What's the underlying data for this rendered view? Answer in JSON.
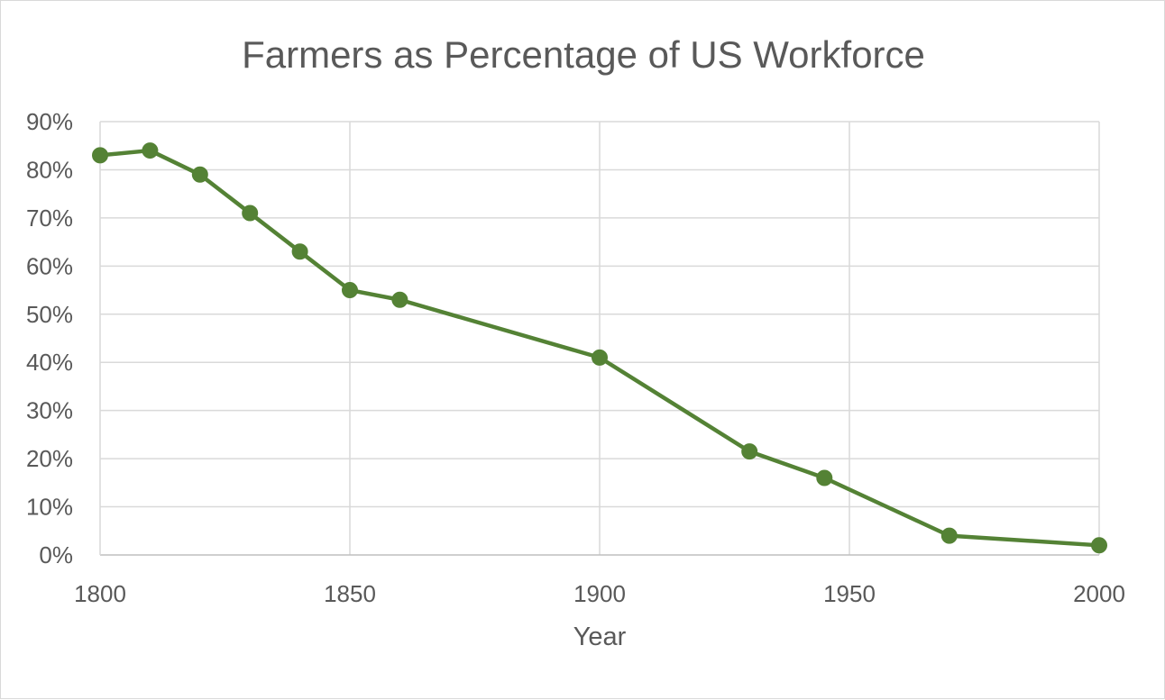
{
  "chart_data": {
    "type": "line",
    "title": "Farmers as Percentage of US Workforce",
    "xlabel": "Year",
    "ylabel": "",
    "xlim": [
      1800,
      2000
    ],
    "ylim": [
      0,
      90
    ],
    "x_ticks": [
      1800,
      1850,
      1900,
      1950,
      2000
    ],
    "y_ticks": [
      0,
      10,
      20,
      30,
      40,
      50,
      60,
      70,
      80,
      90
    ],
    "y_tick_format": "percent",
    "grid": true,
    "legend": "none",
    "series": [
      {
        "color": "#548235",
        "marker": "circle",
        "x": [
          1800,
          1810,
          1820,
          1830,
          1840,
          1850,
          1860,
          1900,
          1930,
          1945,
          1970,
          2000
        ],
        "y": [
          83,
          84,
          79,
          71,
          63,
          55,
          53,
          41,
          21.5,
          16,
          4,
          2
        ]
      }
    ]
  }
}
